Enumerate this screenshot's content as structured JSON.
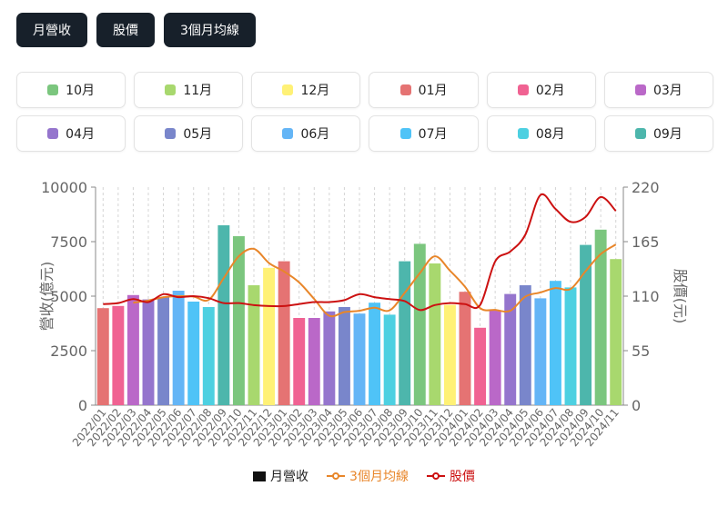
{
  "tabs": [
    "月營收",
    "股價",
    "3個月均線"
  ],
  "month_filters": [
    {
      "label": "10月",
      "color": "#7bc67e"
    },
    {
      "label": "11月",
      "color": "#a8d86e"
    },
    {
      "label": "12月",
      "color": "#fff176"
    },
    {
      "label": "01月",
      "color": "#e57373"
    },
    {
      "label": "02月",
      "color": "#f06292"
    },
    {
      "label": "03月",
      "color": "#ba68c8"
    },
    {
      "label": "04月",
      "color": "#9575cd"
    },
    {
      "label": "05月",
      "color": "#7986cb"
    },
    {
      "label": "06月",
      "color": "#64b5f6"
    },
    {
      "label": "07月",
      "color": "#4fc3f7"
    },
    {
      "label": "08月",
      "color": "#4dd0e1"
    },
    {
      "label": "09月",
      "color": "#4db6ac"
    }
  ],
  "chart_data": {
    "type": "bar",
    "categories": [
      "2022/01",
      "2022/02",
      "2022/03",
      "2022/04",
      "2022/05",
      "2022/06",
      "2022/07",
      "2022/08",
      "2022/09",
      "2022/10",
      "2022/11",
      "2022/12",
      "2023/01",
      "2023/02",
      "2023/03",
      "2023/04",
      "2023/05",
      "2023/06",
      "2023/07",
      "2023/08",
      "2023/09",
      "2023/10",
      "2023/11",
      "2023/12",
      "2024/01",
      "2024/02",
      "2024/03",
      "2024/04",
      "2024/05",
      "2024/06",
      "2024/07",
      "2024/08",
      "2024/09",
      "2024/10",
      "2024/11"
    ],
    "series": [
      {
        "name": "月營收",
        "type": "bar",
        "axis": "left",
        "values": [
          4450,
          4550,
          5050,
          4850,
          4950,
          5250,
          4750,
          4500,
          8250,
          7750,
          5500,
          6300,
          6600,
          4000,
          4000,
          4300,
          4500,
          4200,
          4700,
          4150,
          6600,
          7400,
          6500,
          4600,
          5200,
          3550,
          4350,
          5100,
          5500,
          4900,
          5700,
          5400,
          7350,
          8050,
          6700
        ]
      },
      {
        "name": "3個月均線",
        "type": "line",
        "axis": "left",
        "color": "#e8862a",
        "values": [
          null,
          null,
          4700,
          4800,
          4950,
          5000,
          4980,
          4830,
          5830,
          6830,
          7170,
          6520,
          6130,
          5630,
          4870,
          4100,
          4270,
          4330,
          4470,
          4350,
          5150,
          6050,
          6830,
          6170,
          5430,
          4450,
          4370,
          4330,
          4980,
          5170,
          5370,
          5330,
          6150,
          6930,
          7370
        ]
      },
      {
        "name": "股價",
        "type": "line",
        "axis": "right",
        "color": "#cc1111",
        "values": [
          102,
          103,
          107,
          104,
          112,
          109,
          110,
          108,
          103,
          103,
          101,
          100,
          100,
          102,
          104,
          104,
          106,
          112,
          109,
          107,
          105,
          96,
          101,
          103,
          102,
          101,
          145,
          155,
          172,
          212,
          198,
          185,
          190,
          210,
          196
        ]
      }
    ],
    "ylabel": "營收(億元)",
    "y2label": "股價(元)",
    "ylim": [
      0,
      10000
    ],
    "y2lim": [
      0,
      220
    ],
    "yticks": [
      "0",
      "2500",
      "5000",
      "7500",
      "10000"
    ],
    "y2ticks": [
      "0",
      "55",
      "110",
      "165",
      "220"
    ],
    "month_colors": [
      "#e57373",
      "#f06292",
      "#ba68c8",
      "#9575cd",
      "#7986cb",
      "#64b5f6",
      "#4fc3f7",
      "#4dd0e1",
      "#4db6ac",
      "#7bc67e",
      "#a8d86e",
      "#fff176"
    ],
    "grid": "vertical-dashed",
    "legend": "bottom",
    "legend_items": [
      {
        "label": "月營收",
        "color": "#111111",
        "style": "box"
      },
      {
        "label": "3個月均線",
        "color": "#e8862a",
        "style": "line"
      },
      {
        "label": "股價",
        "color": "#cc1111",
        "style": "line"
      }
    ]
  }
}
